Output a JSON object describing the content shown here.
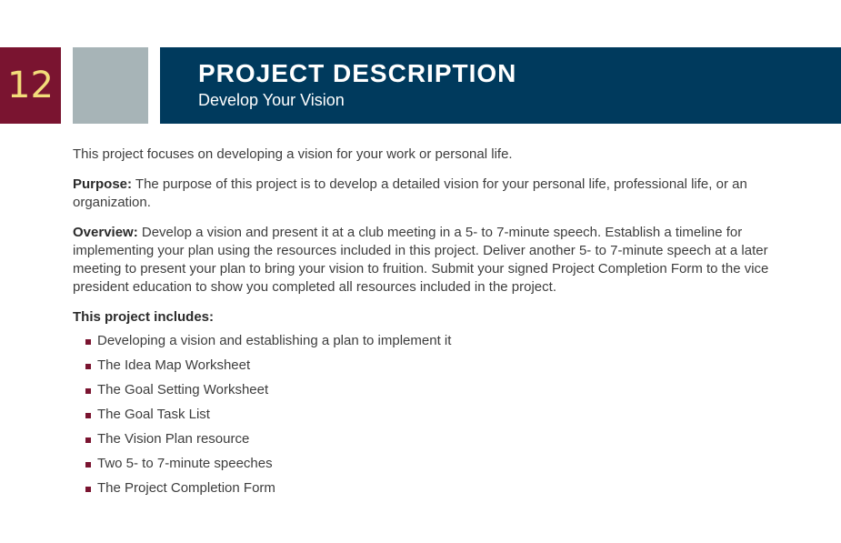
{
  "header": {
    "project_number": "12",
    "title": "PROJECT DESCRIPTION",
    "subtitle": "Develop Your Vision",
    "colors": {
      "number_bg": "#7a1430",
      "number_text": "#f3dd7a",
      "gray_bg": "#a7b4b7",
      "title_bg": "#003a5d"
    }
  },
  "body": {
    "intro": "This project focuses on developing a vision for your work or personal life.",
    "purpose_label": "Purpose:",
    "purpose_text": " The purpose of this project is to develop a detailed vision for your personal life, professional life, or an organization.",
    "overview_label": "Overview:",
    "overview_text": " Develop a vision and present it at a club meeting in a 5- to 7-minute speech. Establish a timeline for implementing your plan using the resources included in this project. Deliver another 5- to 7-minute speech at a later meeting to present your plan to bring your vision to fruition. Submit your signed Project Completion Form to the vice president education to show you completed all resources included in the project.",
    "includes_title": "This project includes:",
    "includes": [
      "Developing a vision and establishing a plan to implement it",
      "The Idea Map Worksheet",
      "The Goal Setting Worksheet",
      "The Goal Task List",
      "The Vision Plan resource",
      "Two 5- to 7-minute speeches",
      "The Project Completion Form"
    ],
    "bullet_color": "#7a1430"
  }
}
